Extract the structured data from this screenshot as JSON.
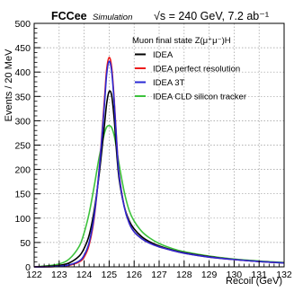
{
  "header": {
    "experiment": "FCCee",
    "status": "Simulation",
    "energy_text": "√s = 240 GeV, 7.2 ab⁻¹"
  },
  "chart_data": {
    "type": "line",
    "title": "",
    "xlabel": "Recoil (GeV)",
    "ylabel": "Events / 20 MeV",
    "xlim": [
      122,
      132
    ],
    "ylim": [
      0,
      500
    ],
    "x_ticks": [
      122,
      123,
      124,
      125,
      126,
      127,
      128,
      129,
      130,
      131,
      132
    ],
    "y_ticks": [
      0,
      50,
      100,
      150,
      200,
      250,
      300,
      350,
      400,
      450,
      500
    ],
    "grid": true,
    "legend_header": "Muon final state Z(μ⁺μ⁻)H",
    "legend_position": "top-right",
    "x": [
      122,
      122.5,
      123,
      123.4,
      123.8,
      124.0,
      124.2,
      124.4,
      124.6,
      124.8,
      124.9,
      125.0,
      125.1,
      125.2,
      125.3,
      125.4,
      125.6,
      125.8,
      126.0,
      126.3,
      126.6,
      127.0,
      127.5,
      128.0,
      129.0,
      130.0,
      131.0,
      132.0
    ],
    "series": [
      {
        "name": "IDEA",
        "color": "#000000",
        "values": [
          0,
          1,
          3,
          8,
          22,
          38,
          65,
          115,
          190,
          285,
          335,
          360,
          352,
          305,
          235,
          180,
          125,
          95,
          78,
          62,
          52,
          43,
          35,
          29,
          21,
          15,
          11,
          8
        ]
      },
      {
        "name": "IDEA perfect resolution",
        "color": "#ee1c1c",
        "values": [
          0,
          0,
          1,
          3,
          10,
          20,
          45,
          100,
          200,
          335,
          405,
          430,
          410,
          345,
          260,
          190,
          125,
          90,
          72,
          58,
          49,
          41,
          34,
          28,
          20,
          15,
          11,
          8
        ]
      },
      {
        "name": "IDEA 3T",
        "color": "#2a2ad4",
        "values": [
          0,
          0,
          1,
          4,
          12,
          24,
          50,
          105,
          198,
          325,
          395,
          422,
          402,
          340,
          256,
          188,
          124,
          90,
          72,
          58,
          49,
          41,
          34,
          28,
          20,
          15,
          11,
          8
        ]
      },
      {
        "name": "IDEA CLD silicon tracker",
        "color": "#3cc23c",
        "values": [
          0,
          2,
          6,
          16,
          42,
          70,
          110,
          165,
          225,
          272,
          287,
          290,
          286,
          270,
          242,
          210,
          155,
          116,
          94,
          73,
          60,
          48,
          38,
          31,
          22,
          16,
          12,
          9
        ]
      }
    ]
  }
}
